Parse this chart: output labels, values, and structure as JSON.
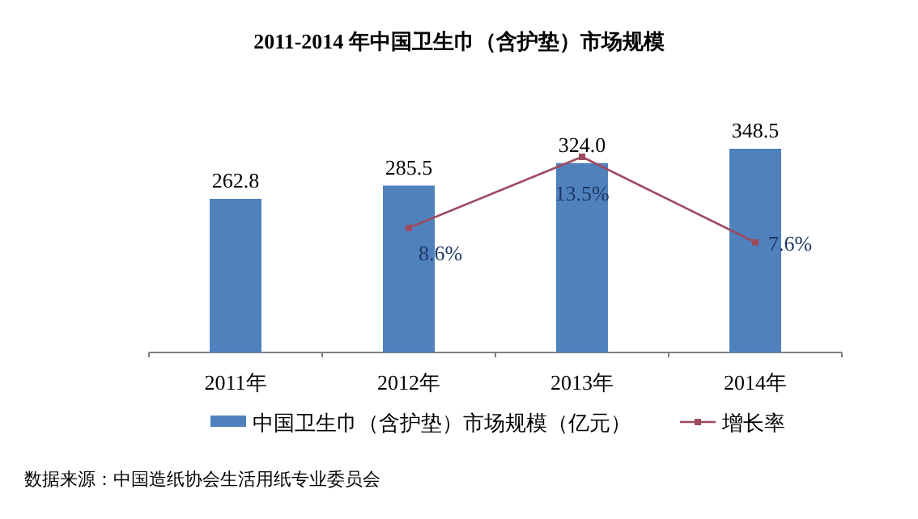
{
  "chart_data": {
    "type": "bar",
    "title": "2011-2014 年中国卫生巾（含护垫）市场规模",
    "categories": [
      "2011年",
      "2012年",
      "2013年",
      "2014年"
    ],
    "series": [
      {
        "name": "中国卫生巾（含护垫）市场规模（亿元）",
        "color": "#4f81bd",
        "values": [
          262.8,
          285.5,
          324.0,
          348.5
        ],
        "value_labels": [
          "262.8",
          "285.5",
          "324.0",
          "348.5"
        ]
      },
      {
        "name": "增长率",
        "type": "line",
        "axis": "y2",
        "color": "#9e4a5e",
        "marker": "square",
        "values": [
          null,
          8.6,
          13.5,
          7.6
        ],
        "value_labels": [
          null,
          "8.6%",
          "13.5%",
          "7.6%"
        ]
      }
    ],
    "legend": "bottom",
    "annotations": [
      "数据来源：中国造纸协会生活用纸专业委员会"
    ]
  }
}
